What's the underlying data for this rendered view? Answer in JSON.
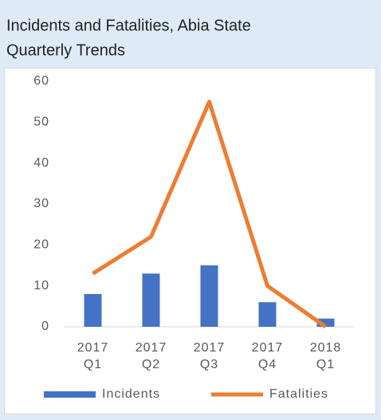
{
  "chart_data": {
    "type": "bar_line",
    "title": [
      "Incidents and Fatalities, Abia State",
      "Quarterly Trends"
    ],
    "categories": [
      "2017 Q1",
      "2017 Q2",
      "2017 Q3",
      "2017 Q4",
      "2018 Q1"
    ],
    "series": [
      {
        "name": "Incidents",
        "color": "#4472c4",
        "type": "bar",
        "values": [
          8,
          13,
          15,
          6,
          2
        ]
      },
      {
        "name": "Fatalities",
        "color": "#ed7d31",
        "type": "line",
        "values": [
          13,
          22,
          55,
          10,
          0
        ]
      }
    ],
    "ylim": [
      0,
      60
    ],
    "yticks": [
      0,
      10,
      20,
      30,
      40,
      50,
      60
    ],
    "grid": false,
    "legend": "bottom"
  }
}
